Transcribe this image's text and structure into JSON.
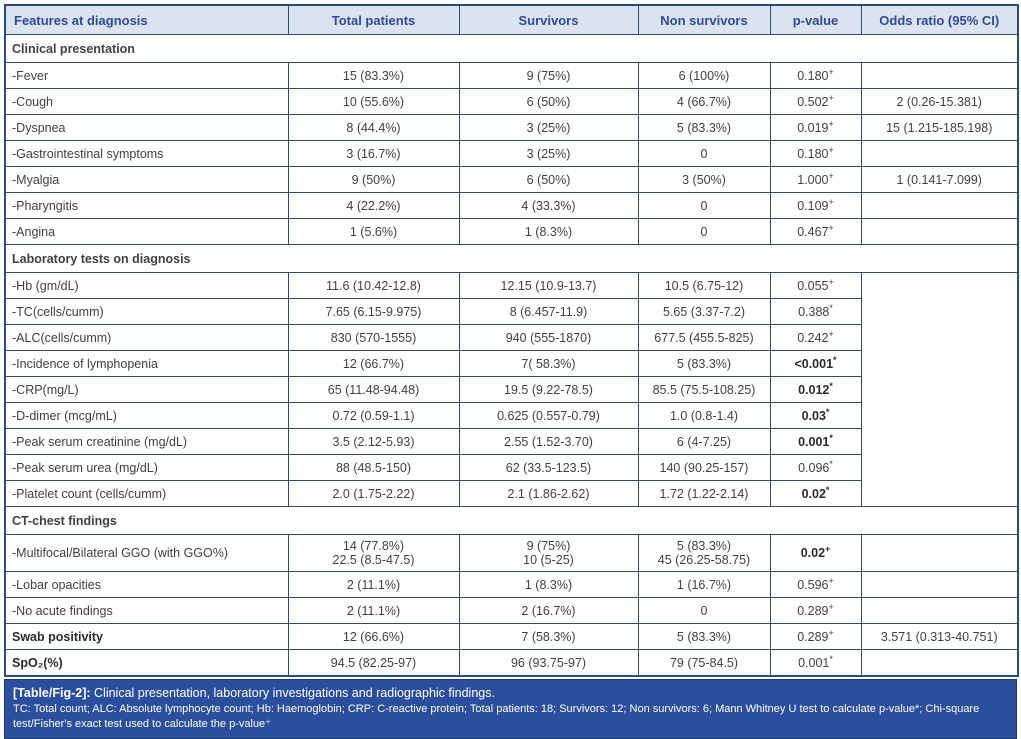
{
  "header": {
    "columns": [
      "Features at diagnosis",
      "Total patients",
      "Survivors",
      "Non survivors",
      "p-value",
      "Odds ratio (95% CI)"
    ]
  },
  "sections": [
    {
      "title": "Clinical presentation",
      "odds_merged": false,
      "rows": [
        {
          "feature": "-Fever",
          "bold": false,
          "total": "15 (83.3%)",
          "survivors": "9 (75%)",
          "non_survivors": "6 (100%)",
          "p": "0.180",
          "p_sup": "+",
          "p_bold": false,
          "odds": ""
        },
        {
          "feature": "-Cough",
          "bold": false,
          "total": "10 (55.6%)",
          "survivors": "6 (50%)",
          "non_survivors": "4 (66.7%)",
          "p": "0.502",
          "p_sup": "+",
          "p_bold": false,
          "odds": "2 (0.26-15.381)"
        },
        {
          "feature": "-Dyspnea",
          "bold": false,
          "total": "8 (44.4%)",
          "survivors": "3 (25%)",
          "non_survivors": "5 (83.3%)",
          "p": "0.019",
          "p_sup": "+",
          "p_bold": false,
          "odds": "15 (1.215-185.198)"
        },
        {
          "feature": "-Gastrointestinal symptoms",
          "bold": false,
          "total": "3 (16.7%)",
          "survivors": "3 (25%)",
          "non_survivors": "0",
          "p": "0.180",
          "p_sup": "+",
          "p_bold": false,
          "odds": ""
        },
        {
          "feature": "-Myalgia",
          "bold": false,
          "total": "9 (50%)",
          "survivors": "6 (50%)",
          "non_survivors": "3 (50%)",
          "p": "1.000",
          "p_sup": "+",
          "p_bold": false,
          "odds": "1 (0.141-7.099)"
        },
        {
          "feature": "-Pharyngitis",
          "bold": false,
          "total": "4 (22.2%)",
          "survivors": "4 (33.3%)",
          "non_survivors": "0",
          "p": "0.109",
          "p_sup": "+",
          "p_bold": false,
          "odds": ""
        },
        {
          "feature": "-Angina",
          "bold": false,
          "total": "1 (5.6%)",
          "survivors": "1 (8.3%)",
          "non_survivors": "0",
          "p": "0.467",
          "p_sup": "+",
          "p_bold": false,
          "odds": ""
        }
      ]
    },
    {
      "title": "Laboratory tests on diagnosis",
      "odds_merged": true,
      "rows": [
        {
          "feature": "-Hb (gm/dL)",
          "bold": false,
          "total": "11.6 (10.42-12.8)",
          "survivors": "12.15 (10.9-13.7)",
          "non_survivors": "10.5 (6.75-12)",
          "p": "0.055",
          "p_sup": "+",
          "p_bold": false,
          "odds": ""
        },
        {
          "feature": "-TC(cells/cumm)",
          "bold": false,
          "total": "7.65 (6.15-9.975)",
          "survivors": "8 (6.457-11.9)",
          "non_survivors": "5.65 (3.37-7.2)",
          "p": "0.388",
          "p_sup": "*",
          "p_bold": false,
          "odds": ""
        },
        {
          "feature": "-ALC(cells/cumm)",
          "bold": false,
          "total": "830 (570-1555)",
          "survivors": "940 (555-1870)",
          "non_survivors": "677.5 (455.5-825)",
          "p": "0.242",
          "p_sup": "+",
          "p_bold": false,
          "odds": ""
        },
        {
          "feature": "-Incidence of lymphopenia",
          "bold": false,
          "total": "12 (66.7%)",
          "survivors": "7( 58.3%)",
          "non_survivors": "5 (83.3%)",
          "p": "<0.001",
          "p_sup": "*",
          "p_bold": true,
          "odds": ""
        },
        {
          "feature": "-CRP(mg/L)",
          "bold": false,
          "total": "65 (11.48-94.48)",
          "survivors": "19.5 (9.22-78.5)",
          "non_survivors": "85.5 (75.5-108.25)",
          "p": "0.012",
          "p_sup": "*",
          "p_bold": true,
          "odds": ""
        },
        {
          "feature": "-D-dimer (mcg/mL)",
          "bold": false,
          "total": "0.72 (0.59-1.1)",
          "survivors": "0.625 (0.557-0.79)",
          "non_survivors": "1.0 (0.8-1.4)",
          "p": "0.03",
          "p_sup": "*",
          "p_bold": true,
          "odds": ""
        },
        {
          "feature": "-Peak serum creatinine (mg/dL)",
          "bold": false,
          "total": "3.5 (2.12-5.93)",
          "survivors": "2.55 (1.52-3.70)",
          "non_survivors": "6 (4-7.25)",
          "p": "0.001",
          "p_sup": "*",
          "p_bold": true,
          "odds": ""
        },
        {
          "feature": "-Peak serum urea (mg/dL)",
          "bold": false,
          "total": "88 (48.5-150)",
          "survivors": "62 (33.5-123.5)",
          "non_survivors": "140 (90.25-157)",
          "p": "0.096",
          "p_sup": "*",
          "p_bold": false,
          "odds": ""
        },
        {
          "feature": "-Platelet count (cells/cumm)",
          "bold": false,
          "total": "2.0 (1.75-2.22)",
          "survivors": "2.1 (1.86-2.62)",
          "non_survivors": "1.72 (1.22-2.14)",
          "p": "0.02",
          "p_sup": "*",
          "p_bold": true,
          "odds": ""
        }
      ]
    },
    {
      "title": "CT-chest findings",
      "odds_merged": false,
      "rows": [
        {
          "feature": "-Multifocal/Bilateral GGO (with GGO%)",
          "bold": false,
          "total": "14 (77.8%)\n22.5 (8.5-47.5)",
          "survivors": "9 (75%)\n10 (5-25)",
          "non_survivors": "5 (83.3%)\n45 (26.25-58.75)",
          "p": "0.02",
          "p_sup": "+",
          "p_bold": true,
          "odds": ""
        },
        {
          "feature": "-Lobar opacities",
          "bold": false,
          "total": "2 (11.1%)",
          "survivors": "1 (8.3%)",
          "non_survivors": "1 (16.7%)",
          "p": "0.596",
          "p_sup": "+",
          "p_bold": false,
          "odds": ""
        },
        {
          "feature": "-No acute findings",
          "bold": false,
          "total": "2 (11.1%)",
          "survivors": "2 (16.7%)",
          "non_survivors": "0",
          "p": "0.289",
          "p_sup": "+",
          "p_bold": false,
          "odds": ""
        }
      ]
    },
    {
      "title": null,
      "odds_merged": false,
      "rows": [
        {
          "feature": "Swab positivity",
          "bold": true,
          "total": "12 (66.6%)",
          "survivors": "7 (58.3%)",
          "non_survivors": "5 (83.3%)",
          "p": "0.289",
          "p_sup": "+",
          "p_bold": false,
          "odds": "3.571 (0.313-40.751)"
        },
        {
          "feature": "SpO₂(%)",
          "bold": true,
          "total": "94.5 (82.25-97)",
          "survivors": "96 (93.75-97)",
          "non_survivors": "79 (75-84.5)",
          "p": "0.001",
          "p_sup": "*",
          "p_bold": false,
          "odds": ""
        }
      ]
    }
  ],
  "caption": {
    "label": "[Table/Fig-2]:",
    "title": " Clinical presentation, laboratory investigations and radiographic findings.",
    "notes": "TC: Total count; ALC: Absolute lymphocyte count; Hb: Haemoglobin; CRP: C-reactive protein; Total patients: 18; Survivors: 12; Non survivors: 6; Mann Whitney U test to calculate p-value*; Chi-square test/Fisher's exact test used to calculate the p-value⁺"
  }
}
